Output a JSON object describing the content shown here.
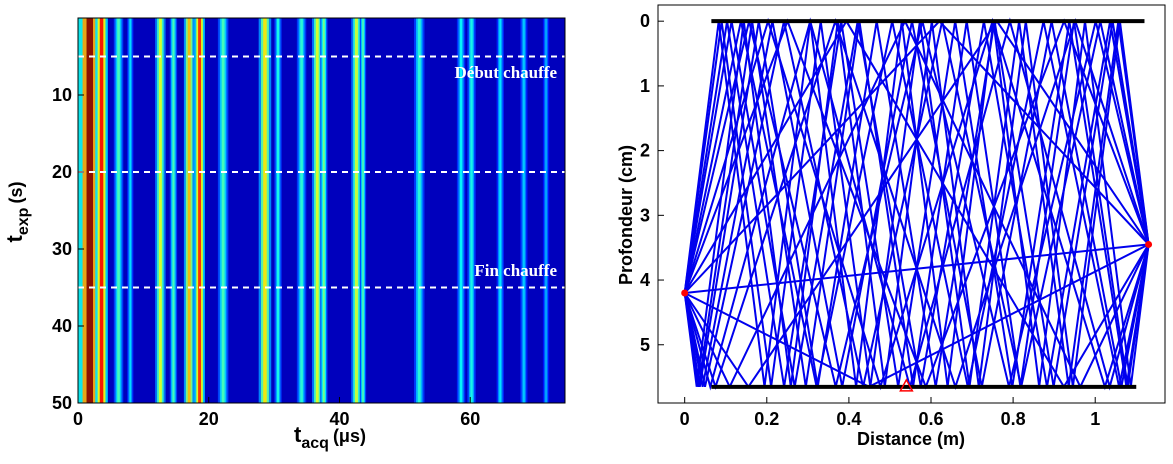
{
  "chart_data": [
    {
      "type": "heatmap",
      "xlabel": {
        "main": "t",
        "sub": "acq",
        "unit": "(μs)"
      },
      "ylabel": {
        "main": "t",
        "sub": "exp",
        "unit": "(s)"
      },
      "xlim": [
        0,
        74.5
      ],
      "ylim": [
        0,
        50
      ],
      "y_reversed": true,
      "xticks": [
        0,
        20,
        40,
        60
      ],
      "yticks": [
        10,
        20,
        30,
        40,
        50
      ],
      "colormap": "jet",
      "background_intensity": 0.06,
      "stripes": [
        {
          "x": 1.8,
          "width": 2.2,
          "intensity": 1.0
        },
        {
          "x": 3.6,
          "width": 1.2,
          "intensity": 0.88
        },
        {
          "x": 6.2,
          "width": 0.9,
          "intensity": 0.45
        },
        {
          "x": 8.0,
          "width": 0.6,
          "intensity": 0.35
        },
        {
          "x": 12.6,
          "width": 1.0,
          "intensity": 0.6
        },
        {
          "x": 14.6,
          "width": 0.7,
          "intensity": 0.45
        },
        {
          "x": 17.0,
          "width": 1.0,
          "intensity": 0.7
        },
        {
          "x": 18.6,
          "width": 1.0,
          "intensity": 0.85
        },
        {
          "x": 22.2,
          "width": 1.0,
          "intensity": 0.45
        },
        {
          "x": 28.6,
          "width": 1.2,
          "intensity": 0.65
        },
        {
          "x": 30.6,
          "width": 0.7,
          "intensity": 0.4
        },
        {
          "x": 34.2,
          "width": 0.9,
          "intensity": 0.42
        },
        {
          "x": 36.6,
          "width": 1.0,
          "intensity": 0.6
        },
        {
          "x": 37.6,
          "width": 0.7,
          "intensity": 0.5
        },
        {
          "x": 42.6,
          "width": 1.0,
          "intensity": 0.58
        },
        {
          "x": 43.6,
          "width": 0.6,
          "intensity": 0.45
        },
        {
          "x": 52.2,
          "width": 1.0,
          "intensity": 0.42
        },
        {
          "x": 58.6,
          "width": 0.8,
          "intensity": 0.38
        },
        {
          "x": 60.2,
          "width": 0.8,
          "intensity": 0.4
        },
        {
          "x": 64.6,
          "width": 0.7,
          "intensity": 0.36
        },
        {
          "x": 68.2,
          "width": 0.7,
          "intensity": 0.33
        },
        {
          "x": 71.6,
          "width": 0.6,
          "intensity": 0.3
        }
      ],
      "hlines": [
        5,
        20,
        35
      ],
      "annotations": [
        "Début chauffe",
        "Fin chauffe"
      ]
    },
    {
      "type": "rays",
      "xlabel": "Distance (m)",
      "ylabel": "Profondeur (cm)",
      "xlim": [
        -0.065,
        1.17
      ],
      "ylim": [
        -0.25,
        5.9
      ],
      "y_reversed": true,
      "xticks": [
        0,
        0.2,
        0.4,
        0.6,
        0.8,
        1
      ],
      "yticks": [
        0,
        1,
        2,
        3,
        4,
        5
      ],
      "color": "#0000ee",
      "depth": 5.65,
      "source": {
        "x": 0,
        "y": 4.2
      },
      "receiver": {
        "x": 1.13,
        "y": 3.45
      },
      "reflections": [
        0,
        1,
        2,
        3,
        4,
        5,
        6,
        7,
        8,
        9,
        10
      ],
      "boundaries": [
        {
          "y": 0,
          "x": [
            0.065,
            1.12
          ]
        },
        {
          "y": 5.65,
          "x": [
            0.065,
            1.1
          ]
        }
      ],
      "marker": {
        "x": 0.54,
        "y": 5.65
      }
    }
  ]
}
